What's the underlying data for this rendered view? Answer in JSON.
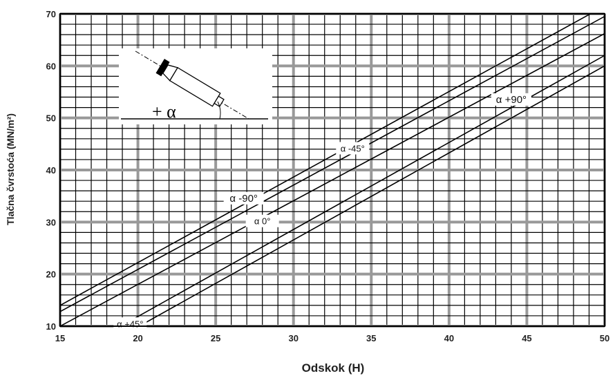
{
  "chart_data": {
    "type": "line",
    "xlabel": "Odskok (H)",
    "ylabel": "Tlačna čvrstoća (MN/m²)",
    "xlim": [
      15,
      50
    ],
    "ylim": [
      10,
      70
    ],
    "x_ticks": [
      "15",
      "20",
      "25",
      "30",
      "35",
      "40",
      "45",
      "50"
    ],
    "y_ticks": [
      "10",
      "20",
      "30",
      "40",
      "50",
      "60",
      "70"
    ],
    "grid": true,
    "series": [
      {
        "name": "α -90°",
        "x": [
          15,
          50
        ],
        "y": [
          14.0,
          71.5
        ]
      },
      {
        "name": "α -45°",
        "x": [
          15,
          50
        ],
        "y": [
          12.8,
          69.5
        ]
      },
      {
        "name": "α 0°",
        "x": [
          15,
          50
        ],
        "y": [
          10.0,
          66.2
        ]
      },
      {
        "name": "α +45°",
        "x": [
          15,
          50
        ],
        "y": [
          3.5,
          62.0
        ]
      },
      {
        "name": "α +90°",
        "x": [
          15,
          50
        ],
        "y": [
          1.5,
          60.0
        ]
      }
    ],
    "inset": {
      "label": "+ α"
    }
  }
}
